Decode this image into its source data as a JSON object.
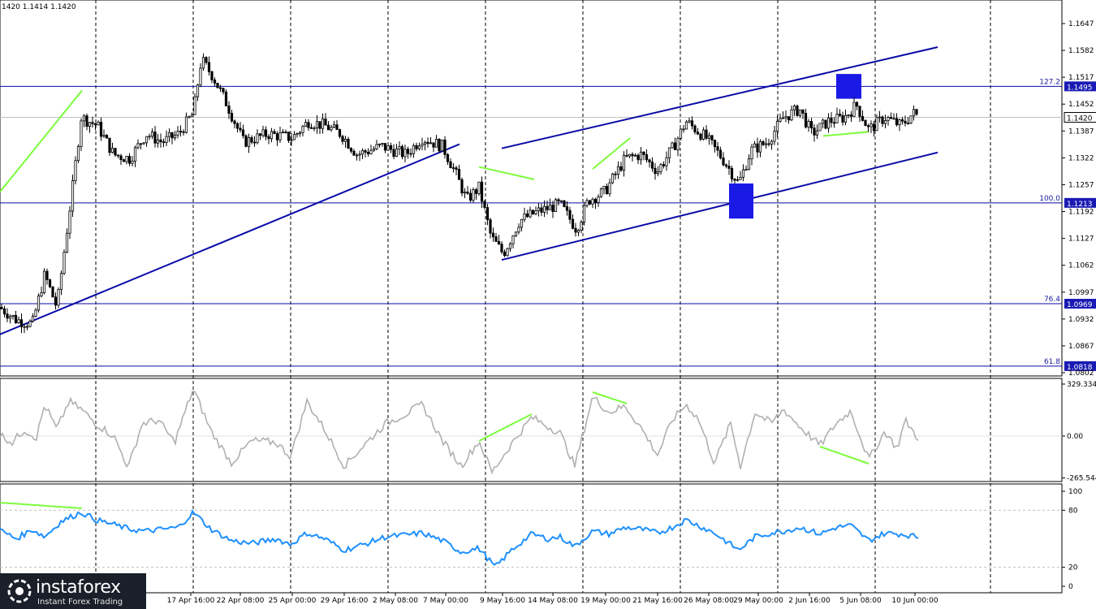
{
  "ohlc_header": "1420 1.1414 1.1420",
  "chart_data": [
    {
      "type": "candlestick",
      "series": [
        {
          "name": "price"
        }
      ],
      "ylim": [
        1.078,
        1.169
      ],
      "yticks": [
        "1.1647",
        "1.1582",
        "1.1517",
        "1.1452",
        "1.1387",
        "1.1322",
        "1.1257",
        "1.1192",
        "1.1127",
        "1.1062",
        "1.0997",
        "1.0932",
        "1.0867",
        "1.0802"
      ],
      "current_price": "1.1420",
      "xticks": [
        "17 Apr 16:00",
        "22 Apr 08:00",
        "25 Apr 00:00",
        "29 Apr 16:00",
        "2 May 08:00",
        "7 May 00:00",
        "9 May 16:00",
        "14 May 08:00",
        "19 May 00:00",
        "21 May 16:00",
        "26 May 08:00",
        "29 May 00:00",
        "2 Jun 16:00",
        "5 Jun 08:00",
        "10 Jun 00:00"
      ],
      "fib_levels": [
        {
          "label": "127.2",
          "value": "1.1495"
        },
        {
          "label": "100.0",
          "value": "1.1213"
        },
        {
          "label": "76.4",
          "value": "1.0969"
        },
        {
          "label": "61.8",
          "value": "1.0818"
        }
      ],
      "colors": {
        "trendline": "#0a0aa8",
        "divergence": "#7cfc3c",
        "candle": "#000000",
        "box": "#1a1ae6"
      }
    },
    {
      "type": "line",
      "name": "oscillator",
      "series": [
        {
          "name": "cci"
        }
      ],
      "yticks": [
        "329.3341",
        "0.00",
        "-265.544"
      ],
      "ylim": [
        -265.544,
        329.3341
      ],
      "colors": {
        "line": "#b0b0b0"
      }
    },
    {
      "type": "line",
      "name": "rsi",
      "series": [
        {
          "name": "rsi"
        }
      ],
      "yticks": [
        "100",
        "80",
        "20",
        "0"
      ],
      "ylim": [
        0,
        100
      ],
      "colors": {
        "line": "#1e90ff"
      }
    }
  ],
  "logo": {
    "brand": "instaforex",
    "tagline": "Instant Forex Trading",
    "icon": "instaforex-logo-icon"
  }
}
